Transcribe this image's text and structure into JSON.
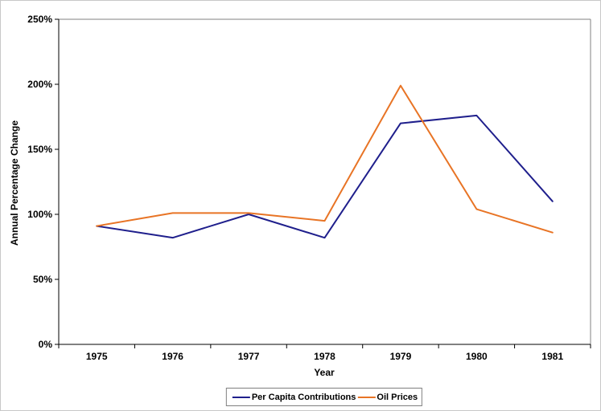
{
  "chart_data": {
    "type": "line",
    "title": "",
    "xlabel": "Year",
    "ylabel": "Annual Percentage Change",
    "categories": [
      "1975",
      "1976",
      "1977",
      "1978",
      "1979",
      "1980",
      "1981"
    ],
    "series": [
      {
        "name": "Per Capita Contributions",
        "color": "#1f1f8c",
        "values": [
          91,
          82,
          100,
          82,
          170,
          176,
          110
        ]
      },
      {
        "name": "Oil Prices",
        "color": "#e87425",
        "values": [
          91,
          101,
          101,
          95,
          199,
          104,
          86
        ]
      }
    ],
    "ylim": [
      0,
      250
    ],
    "ytick_step": 50,
    "ytick_labels": [
      "0%",
      "50%",
      "100%",
      "150%",
      "200%",
      "250%"
    ],
    "grid": false,
    "legend_position": "bottom-center"
  },
  "colors": {
    "axis": "#000000",
    "plot_border": "#808080",
    "background": "#ffffff",
    "outer_border": "#c8c8c8",
    "legend_border": "#7f7f7f"
  }
}
